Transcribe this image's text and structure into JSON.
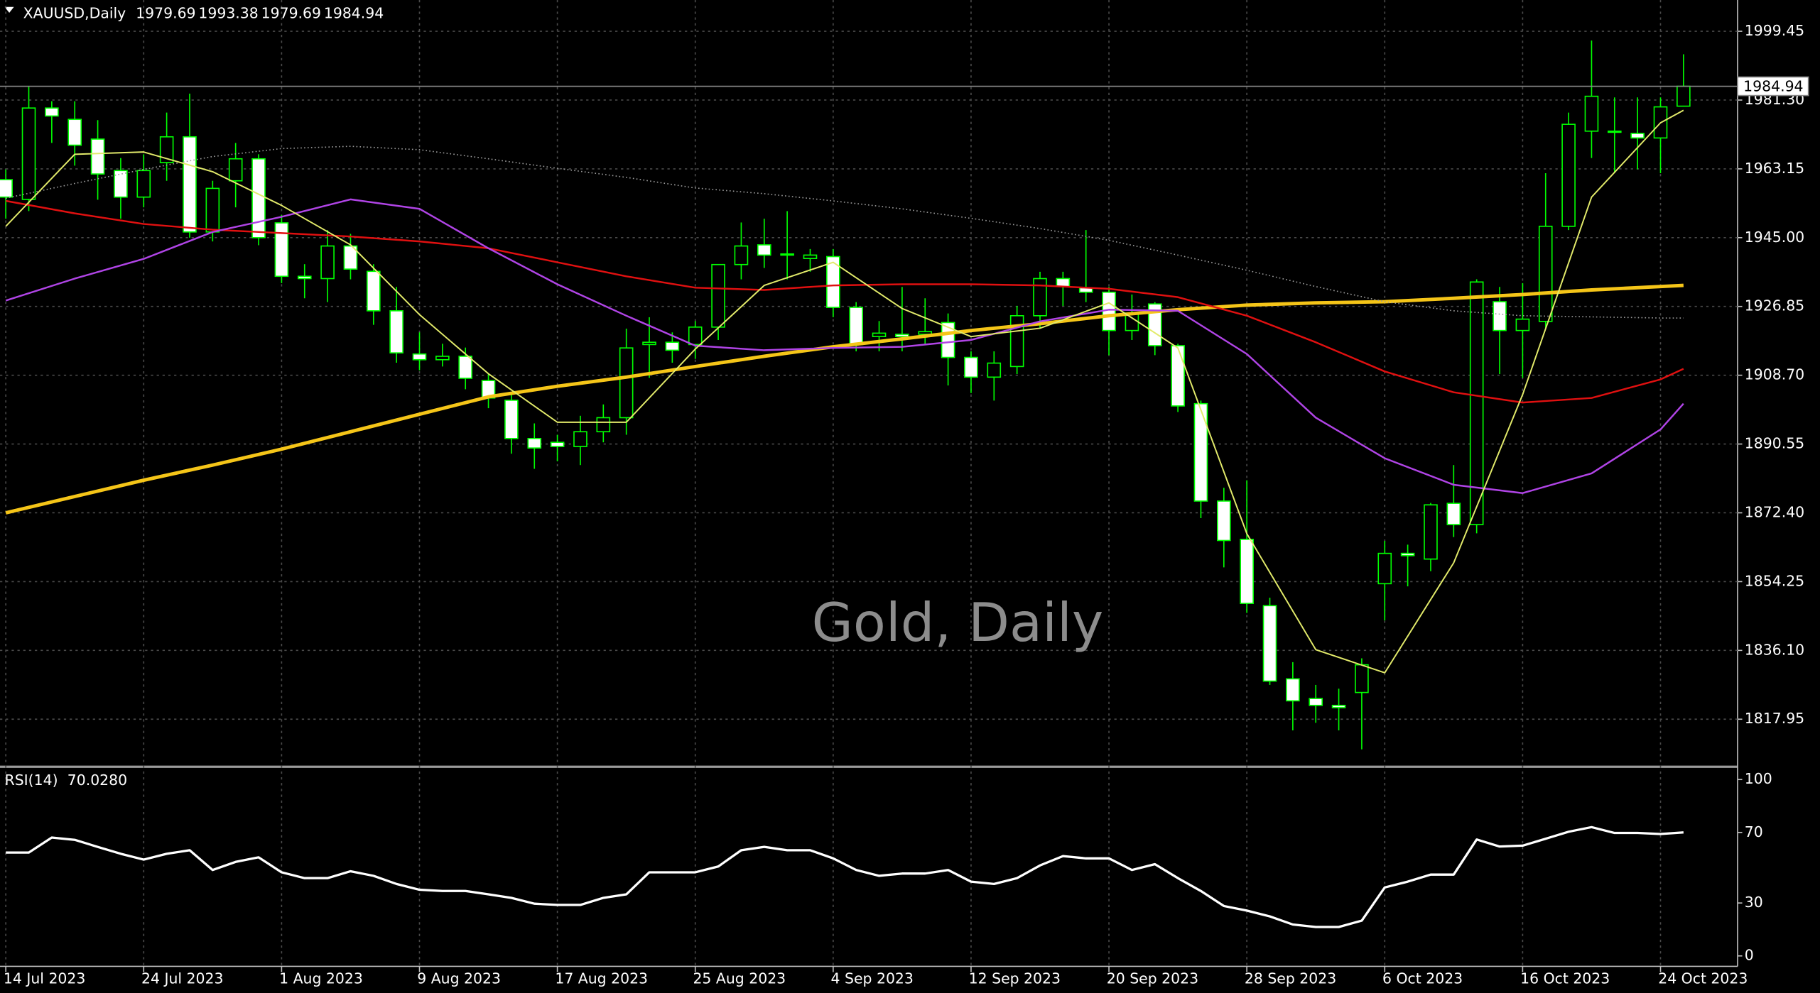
{
  "chart_data": [
    {
      "type": "candlestick",
      "title": "XAUUSD,Daily",
      "watermark": "Gold, Daily",
      "categories": [
        "14 Jul 2023",
        null,
        null,
        null,
        null,
        null,
        "24 Jul 2023",
        null,
        null,
        null,
        null,
        null,
        "1 Aug 2023",
        null,
        null,
        null,
        null,
        null,
        "9 Aug 2023",
        null,
        null,
        null,
        null,
        null,
        "17 Aug 2023",
        null,
        null,
        null,
        null,
        null,
        "25 Aug 2023",
        null,
        null,
        null,
        null,
        null,
        "4 Sep 2023",
        null,
        null,
        null,
        null,
        null,
        "12 Sep 2023",
        null,
        null,
        null,
        null,
        null,
        "20 Sep 2023",
        null,
        null,
        null,
        null,
        null,
        "28 Sep 2023",
        null,
        null,
        null,
        null,
        null,
        "6 Oct 2023",
        null,
        null,
        null,
        null,
        null,
        "16 Oct 2023",
        null,
        null,
        null,
        null,
        null,
        "24 Oct 2023",
        null
      ],
      "open": [
        1960.3,
        1955.1,
        1979.2,
        1976.2,
        1971.0,
        1962.7,
        1955.7,
        1964.8,
        1971.6,
        1946.5,
        1960.0,
        1965.8,
        1948.9,
        1934.8,
        1934.2,
        1942.8,
        1936.1,
        1925.7,
        1914.3,
        1912.8,
        1913.7,
        1907.3,
        1902.1,
        1892.0,
        1891.0,
        1889.9,
        1893.8,
        1897.5,
        1916.8,
        1917.4,
        1916.8,
        1921.4,
        1937.9,
        1943.1,
        1940.4,
        1939.5,
        1940.0,
        1926.6,
        1918.9,
        1919.5,
        1919.5,
        1922.6,
        1913.4,
        1908.2,
        1911.0,
        1924.4,
        1934.2,
        1931.8,
        1930.6,
        1920.5,
        1927.5,
        1916.5,
        1901.2,
        1875.5,
        1865.4,
        1847.9,
        1828.6,
        1823.4,
        1821.6,
        1825.0,
        1853.7,
        1861.7,
        1860.2,
        1874.9,
        1869.3,
        1928.1,
        1920.5,
        1922.9,
        1948.0,
        1973.1,
        1973.1,
        1972.5,
        1971.3,
        1979.69
      ],
      "high": [
        1963,
        1985,
        1981,
        1981,
        1976,
        1966,
        1967,
        1978,
        1983,
        1960,
        1970,
        1967,
        1951,
        1938,
        1947,
        1946,
        1938,
        1932,
        1920,
        1917,
        1916,
        1909,
        1904,
        1896,
        1893,
        1898,
        1901,
        1921,
        1924,
        1920,
        1923,
        1938,
        1949,
        1950,
        1952,
        1942,
        1942,
        1928,
        1923,
        1932,
        1929,
        1925,
        1915,
        1915,
        1927,
        1936,
        1936,
        1947,
        1932,
        1930,
        1928,
        1917,
        1902,
        1879,
        1881,
        1850,
        1833,
        1827,
        1826,
        1834,
        1865,
        1864,
        1875,
        1885,
        1934,
        1932,
        1933,
        1962,
        1978,
        1997,
        1982,
        1982,
        1982,
        1993.38
      ],
      "low": [
        1950,
        1952,
        1970,
        1964,
        1955,
        1950,
        1953,
        1960,
        1945,
        1944,
        1953,
        1943,
        1933,
        1929,
        1928,
        1934,
        1922,
        1912,
        1910,
        1911,
        1905,
        1900,
        1888,
        1884,
        1886,
        1885,
        1891,
        1893,
        1908,
        1912,
        1913,
        1918,
        1934,
        1937,
        1934,
        1936,
        1924,
        1915,
        1915,
        1915,
        1917,
        1906,
        1904,
        1902,
        1909,
        1921,
        1927,
        1928,
        1914,
        1918,
        1914,
        1899,
        1871,
        1858,
        1846,
        1827,
        1815,
        1817,
        1815,
        1810,
        1844,
        1853,
        1857,
        1866,
        1867,
        1909,
        1908,
        1921,
        1947,
        1966,
        1962,
        1963,
        1962,
        1979.69
      ],
      "close": [
        1955.7,
        1979.2,
        1977.1,
        1969.4,
        1961.8,
        1955.7,
        1962.7,
        1971.6,
        1946.5,
        1958.0,
        1965.8,
        1945.0,
        1934.8,
        1934.2,
        1942.8,
        1936.7,
        1925.7,
        1914.6,
        1912.8,
        1913.7,
        1907.9,
        1902.7,
        1892.0,
        1889.5,
        1889.9,
        1893.8,
        1897.5,
        1915.9,
        1917.4,
        1915.3,
        1921.4,
        1937.9,
        1942.8,
        1940.4,
        1940.7,
        1940.4,
        1926.6,
        1916.8,
        1919.8,
        1918.9,
        1920.2,
        1913.4,
        1908.2,
        1911.9,
        1924.4,
        1934.2,
        1932.1,
        1930.6,
        1920.5,
        1925.1,
        1916.5,
        1900.6,
        1875.5,
        1865.1,
        1848.5,
        1828.0,
        1822.8,
        1821.6,
        1821.0,
        1832.3,
        1861.7,
        1861.1,
        1874.5,
        1869.3,
        1933.3,
        1920.5,
        1923.5,
        1948.0,
        1974.9,
        1982.3,
        1972.9,
        1971.3,
        1979.5,
        1984.94
      ],
      "bull_color": "#00ff00",
      "bull_fill": "#000000",
      "bear_fill": "#ffffff",
      "ylim": [
        1805.7,
        2007.7
      ],
      "yticks": [
        1817.95,
        {
          "value": 1836.1,
          "label": "1836.10"
        },
        1854.25,
        {
          "value": 1872.4,
          "label": "1872.40"
        },
        1890.55,
        {
          "value": 1908.7,
          "label": "1908.70"
        },
        1926.85,
        {
          "value": 1945,
          "label": "1945.00"
        },
        1963.15,
        {
          "value": 1981.3,
          "label": "1981.30"
        },
        1999.45
      ],
      "grid": true,
      "overlays": [
        {
          "color": "#f5c518",
          "width": 3,
          "x": [
            0,
            3,
            6,
            9,
            12,
            15,
            18,
            21,
            24,
            27,
            30,
            33,
            36,
            39,
            42,
            45,
            48,
            51,
            54,
            57,
            60,
            63,
            66,
            69,
            72,
            73
          ],
          "values": [
            1872.4,
            1876.7,
            1881.0,
            1885.0,
            1889.2,
            1893.8,
            1898.4,
            1903.0,
            1905.8,
            1908.2,
            1911.0,
            1913.7,
            1916.2,
            1918.3,
            1920.5,
            1922.3,
            1924.4,
            1926.0,
            1927.2,
            1927.8,
            1928.1,
            1929.0,
            1930.0,
            1931.2,
            1932.1,
            1932.4
          ]
        },
        {
          "color": "#9a9a9a",
          "width": 1,
          "dash": "1,2",
          "x": [
            0,
            3,
            6,
            9,
            12,
            15,
            18,
            21,
            24,
            27,
            30,
            33,
            36,
            39,
            42,
            45,
            48,
            51,
            54,
            57,
            60,
            63,
            66,
            69,
            72,
            73
          ],
          "values": [
            1955.4,
            1959.3,
            1963.0,
            1966.4,
            1968.5,
            1969.1,
            1968.2,
            1965.8,
            1963.3,
            1960.9,
            1958.1,
            1956.6,
            1954.7,
            1952.6,
            1950.1,
            1947.4,
            1944.3,
            1940.4,
            1936.4,
            1932.1,
            1928.1,
            1925.7,
            1924.4,
            1924.1,
            1923.8,
            1923.8
          ]
        },
        {
          "color": "#e01010",
          "width": 1.5,
          "x": [
            0,
            3,
            6,
            9,
            12,
            15,
            18,
            21,
            24,
            27,
            30,
            33,
            36,
            39,
            42,
            45,
            48,
            51,
            54,
            57,
            60,
            63,
            66,
            69,
            72,
            73
          ],
          "values": [
            1954.7,
            1951.4,
            1948.6,
            1947.1,
            1946.2,
            1945.3,
            1944.0,
            1942.2,
            1938.5,
            1934.8,
            1931.8,
            1931.2,
            1932.4,
            1932.7,
            1932.7,
            1932.4,
            1931.5,
            1929.3,
            1924.4,
            1917.4,
            1909.7,
            1904.2,
            1901.5,
            1902.7,
            1907.6,
            1910.4
          ]
        },
        {
          "color": "#b044e6",
          "width": 1.5,
          "x": [
            0,
            3,
            6,
            9,
            12,
            15,
            18,
            21,
            24,
            27,
            30,
            33,
            36,
            39,
            42,
            45,
            48,
            51,
            54,
            57,
            60,
            63,
            66,
            69,
            72,
            73
          ],
          "values": [
            1928.4,
            1934.2,
            1939.4,
            1946.5,
            1950.5,
            1955.1,
            1952.6,
            1942.2,
            1932.7,
            1924.4,
            1916.5,
            1915.3,
            1915.9,
            1916.2,
            1918.0,
            1922.9,
            1926.0,
            1925.7,
            1914.3,
            1897.5,
            1886.8,
            1879.8,
            1877.6,
            1882.8,
            1894.4,
            1901.2
          ]
        },
        {
          "color": "#e2ea6a",
          "width": 1.2,
          "x": [
            0,
            3,
            6,
            9,
            12,
            15,
            18,
            21,
            24,
            27,
            30,
            33,
            36,
            39,
            42,
            45,
            48,
            51,
            54,
            57,
            60,
            63,
            66,
            69,
            72,
            73
          ],
          "values": [
            1948.0,
            1967.0,
            1967.6,
            1962.4,
            1953.5,
            1943.1,
            1924.7,
            1909.1,
            1896.3,
            1896.3,
            1915.6,
            1932.4,
            1938.5,
            1926.3,
            1918.9,
            1921.1,
            1927.8,
            1915.9,
            1866.9,
            1836.3,
            1830.2,
            1859.2,
            1903.6,
            1955.7,
            1975.3,
            1978.6
          ]
        }
      ]
    },
    {
      "type": "line",
      "title": "RSI(14)",
      "current": {
        "value": 70.028,
        "label": "70.0280"
      },
      "color": "#ffffff",
      "values": [
        58.6,
        58.6,
        67.1,
        65.8,
        61.8,
        57.9,
        54.6,
        57.9,
        59.9,
        48.7,
        53.3,
        55.9,
        47.4,
        44.1,
        44.1,
        48.0,
        45.4,
        40.8,
        37.5,
        36.8,
        36.8,
        34.9,
        32.9,
        29.6,
        28.9,
        28.9,
        32.9,
        34.9,
        47.4,
        47.4,
        47.4,
        50.7,
        59.9,
        61.8,
        59.9,
        59.9,
        55.3,
        48.7,
        45.4,
        46.7,
        46.7,
        48.7,
        42.1,
        40.8,
        44.1,
        51.3,
        56.6,
        55.3,
        55.3,
        48.7,
        52.0,
        44.1,
        36.8,
        28.3,
        25.7,
        22.4,
        17.8,
        16.4,
        16.4,
        20.0,
        38.8,
        42.1,
        46.1,
        46.1,
        66.0,
        62.0,
        62.5,
        66.4,
        70.4,
        73.0,
        69.7,
        69.7,
        69.1,
        70.028
      ],
      "ylim": [
        -5.9,
        105.9
      ],
      "yticks": [
        0,
        30,
        70,
        100
      ]
    }
  ]
}
